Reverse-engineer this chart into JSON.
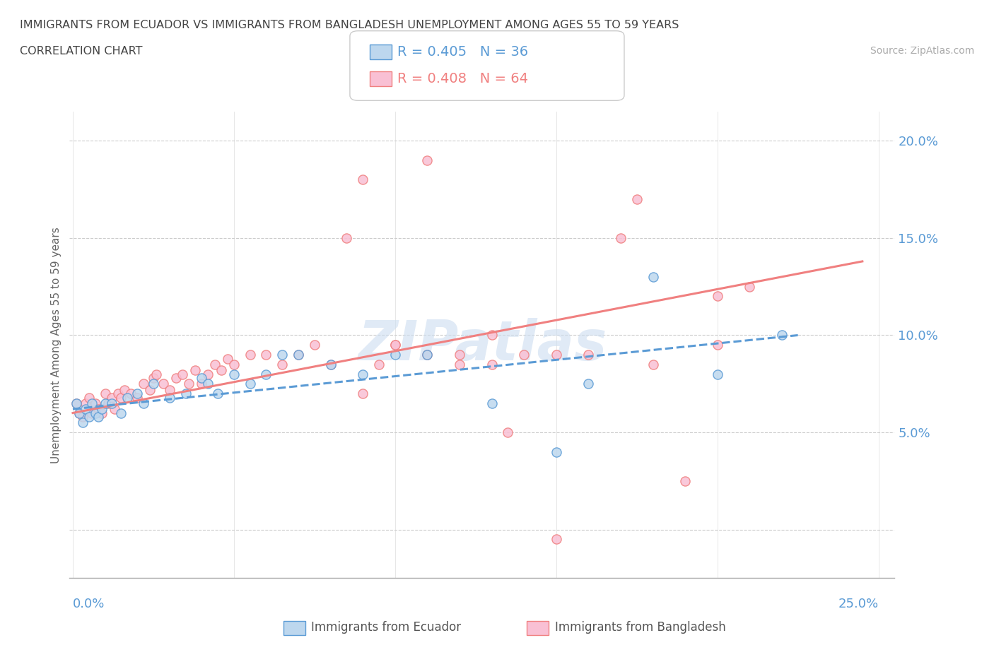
{
  "title_line1": "IMMIGRANTS FROM ECUADOR VS IMMIGRANTS FROM BANGLADESH UNEMPLOYMENT AMONG AGES 55 TO 59 YEARS",
  "title_line2": "CORRELATION CHART",
  "source": "Source: ZipAtlas.com",
  "ylabel": "Unemployment Among Ages 55 to 59 years",
  "watermark": "ZIPatlas",
  "ecuador_color": "#5b9bd5",
  "ecuador_color_fill": "#bdd7ee",
  "bangladesh_color": "#f08080",
  "bangladesh_color_fill": "#f9c0d4",
  "legend_r_ecuador": "R = 0.405",
  "legend_n_ecuador": "N = 36",
  "legend_r_bangladesh": "R = 0.408",
  "legend_n_bangladesh": "N = 64",
  "xlim": [
    -0.001,
    0.255
  ],
  "ylim": [
    -0.025,
    0.215
  ],
  "ecuador_scatter_x": [
    0.001,
    0.002,
    0.003,
    0.004,
    0.005,
    0.006,
    0.007,
    0.008,
    0.009,
    0.01,
    0.012,
    0.015,
    0.017,
    0.02,
    0.022,
    0.025,
    0.03,
    0.035,
    0.04,
    0.042,
    0.045,
    0.05,
    0.055,
    0.06,
    0.065,
    0.07,
    0.08,
    0.09,
    0.1,
    0.11,
    0.13,
    0.15,
    0.16,
    0.18,
    0.2,
    0.22
  ],
  "ecuador_scatter_y": [
    0.065,
    0.06,
    0.055,
    0.062,
    0.058,
    0.065,
    0.06,
    0.058,
    0.062,
    0.065,
    0.065,
    0.06,
    0.068,
    0.07,
    0.065,
    0.075,
    0.068,
    0.07,
    0.078,
    0.075,
    0.07,
    0.08,
    0.075,
    0.08,
    0.09,
    0.09,
    0.085,
    0.08,
    0.09,
    0.09,
    0.065,
    0.04,
    0.075,
    0.13,
    0.08,
    0.1
  ],
  "bangladesh_scatter_x": [
    0.001,
    0.002,
    0.003,
    0.004,
    0.005,
    0.006,
    0.007,
    0.008,
    0.009,
    0.01,
    0.011,
    0.012,
    0.013,
    0.014,
    0.015,
    0.016,
    0.018,
    0.02,
    0.022,
    0.024,
    0.025,
    0.026,
    0.028,
    0.03,
    0.032,
    0.034,
    0.036,
    0.038,
    0.04,
    0.042,
    0.044,
    0.046,
    0.048,
    0.05,
    0.055,
    0.06,
    0.065,
    0.07,
    0.075,
    0.08,
    0.085,
    0.09,
    0.095,
    0.1,
    0.11,
    0.12,
    0.13,
    0.14,
    0.15,
    0.16,
    0.17,
    0.175,
    0.18,
    0.19,
    0.2,
    0.21,
    0.13,
    0.15,
    0.09,
    0.11,
    0.1,
    0.12,
    0.135,
    0.2
  ],
  "bangladesh_scatter_y": [
    0.065,
    0.06,
    0.058,
    0.065,
    0.068,
    0.06,
    0.065,
    0.062,
    0.06,
    0.07,
    0.065,
    0.068,
    0.062,
    0.07,
    0.068,
    0.072,
    0.07,
    0.068,
    0.075,
    0.072,
    0.078,
    0.08,
    0.075,
    0.072,
    0.078,
    0.08,
    0.075,
    0.082,
    0.075,
    0.08,
    0.085,
    0.082,
    0.088,
    0.085,
    0.09,
    0.09,
    0.085,
    0.09,
    0.095,
    0.085,
    0.15,
    0.07,
    0.085,
    0.095,
    0.09,
    0.09,
    0.085,
    0.09,
    0.09,
    0.09,
    0.15,
    0.17,
    0.085,
    0.025,
    0.12,
    0.125,
    0.1,
    -0.005,
    0.18,
    0.19,
    0.095,
    0.085,
    0.05,
    0.095
  ],
  "ecuador_trendline_x": [
    0.0,
    0.225
  ],
  "ecuador_trendline_y": [
    0.062,
    0.1
  ],
  "bangladesh_trendline_x": [
    0.0,
    0.245
  ],
  "bangladesh_trendline_y": [
    0.06,
    0.138
  ]
}
